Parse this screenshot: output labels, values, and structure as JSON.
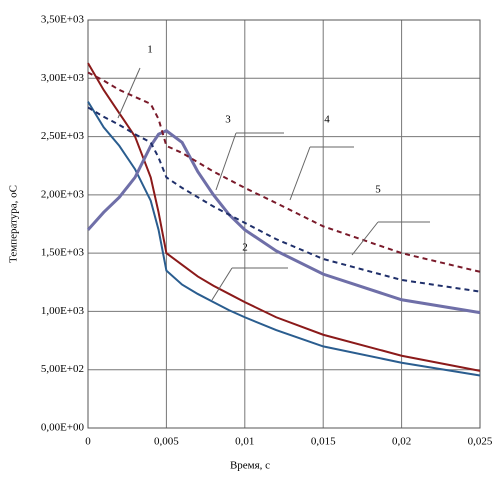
{
  "chart_data": {
    "type": "line",
    "xlabel": "Время, с",
    "ylabel": "Температура, оС",
    "x": [
      0,
      0.001,
      0.002,
      0.003,
      0.004,
      0.0045,
      0.005,
      0.006,
      0.007,
      0.008,
      0.009,
      0.01,
      0.012,
      0.015,
      0.02,
      0.025
    ],
    "series": [
      {
        "name": "1",
        "color": "#8b1a1a",
        "dash": false,
        "values": [
          3130,
          2900,
          2700,
          2500,
          2150,
          1850,
          1500,
          1400,
          1300,
          1220,
          1150,
          1080,
          950,
          800,
          620,
          490
        ]
      },
      {
        "name": "2",
        "color": "#2a5d8f",
        "dash": false,
        "values": [
          2800,
          2580,
          2420,
          2220,
          1950,
          1700,
          1350,
          1230,
          1150,
          1080,
          1010,
          950,
          840,
          700,
          560,
          450
        ]
      },
      {
        "name": "3",
        "color": "#6f6fa8",
        "dash": false,
        "values": [
          1700,
          1850,
          1980,
          2150,
          2420,
          2520,
          2550,
          2450,
          2200,
          2000,
          1830,
          1700,
          1520,
          1320,
          1100,
          990
        ]
      },
      {
        "name": "4",
        "color": "#7a1a2a",
        "dash": true,
        "values": [
          3050,
          2980,
          2900,
          2840,
          2780,
          2650,
          2420,
          2360,
          2280,
          2200,
          2130,
          2060,
          1930,
          1730,
          1500,
          1340
        ]
      },
      {
        "name": "5",
        "color": "#1f2f6a",
        "dash": true,
        "values": [
          2750,
          2670,
          2600,
          2520,
          2450,
          2320,
          2150,
          2060,
          1980,
          1900,
          1830,
          1760,
          1620,
          1450,
          1270,
          1170
        ]
      }
    ],
    "xlim": [
      0,
      0.025
    ],
    "xticks": [
      0,
      {
        "value": 0.005,
        "label": "0,005"
      },
      {
        "value": 0.01,
        "label": "0,01"
      },
      {
        "value": 0.015,
        "label": "0,015"
      },
      {
        "value": 0.02,
        "label": "0,02"
      },
      {
        "value": 0.025,
        "label": "0,025"
      }
    ],
    "ylim": [
      0,
      3500
    ],
    "yticks": [
      {
        "value": 0,
        "label": "0,00E+00"
      },
      {
        "value": 500,
        "label": "5,00E+02"
      },
      {
        "value": 1000,
        "label": "1,00E+03"
      },
      {
        "value": 1500,
        "label": "1,50E+03"
      },
      {
        "value": 2000,
        "label": "2,00E+03"
      },
      {
        "value": 2500,
        "label": "2,50E+03"
      },
      {
        "value": 3000,
        "label": "3,00E+03"
      },
      {
        "value": 3500,
        "label": "3,50E+03"
      }
    ],
    "grid": true
  }
}
